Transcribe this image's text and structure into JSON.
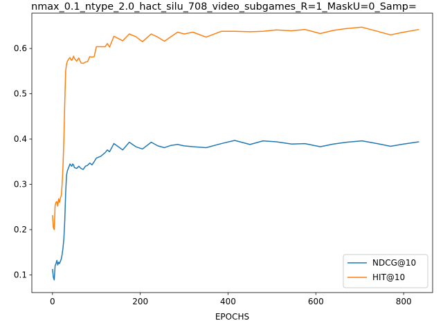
{
  "chart_data": {
    "type": "line",
    "title": "nmax_0.1_ntype_2.0_hact_silu_708_video_subgames_R=1_MaskU=0_Samp=",
    "xlabel": "EPOCHS",
    "ylabel": "",
    "xlim": [
      -47,
      866
    ],
    "ylim": [
      0.061,
      0.678
    ],
    "xticks": [
      0,
      200,
      400,
      600,
      800
    ],
    "yticks": [
      0.1,
      0.2,
      0.3,
      0.4,
      0.5,
      0.6
    ],
    "grid": false,
    "legend_position": "lower-right",
    "series": [
      {
        "name": "NDCG@10",
        "color": "#1f77b4",
        "x": [
          0,
          2,
          4,
          6,
          8,
          10,
          12,
          14,
          16,
          18,
          20,
          22,
          24,
          26,
          28,
          30,
          32,
          34,
          36,
          38,
          40,
          42,
          44,
          46,
          48,
          50,
          55,
          60,
          65,
          70,
          75,
          80,
          85,
          90,
          95,
          100,
          110,
          120,
          125,
          130,
          140,
          150,
          160,
          175,
          190,
          205,
          225,
          240,
          255,
          270,
          285,
          300,
          320,
          350,
          385,
          415,
          450,
          480,
          510,
          545,
          575,
          610,
          640,
          670,
          705,
          740,
          770,
          800,
          835
        ],
        "y": [
          0.113,
          0.095,
          0.089,
          0.12,
          0.125,
          0.132,
          0.122,
          0.128,
          0.125,
          0.13,
          0.135,
          0.145,
          0.16,
          0.18,
          0.22,
          0.28,
          0.32,
          0.33,
          0.335,
          0.34,
          0.345,
          0.342,
          0.34,
          0.345,
          0.343,
          0.337,
          0.335,
          0.34,
          0.335,
          0.333,
          0.34,
          0.342,
          0.347,
          0.343,
          0.35,
          0.358,
          0.362,
          0.37,
          0.376,
          0.372,
          0.39,
          0.383,
          0.376,
          0.393,
          0.383,
          0.378,
          0.393,
          0.385,
          0.381,
          0.386,
          0.388,
          0.385,
          0.383,
          0.381,
          0.39,
          0.397,
          0.388,
          0.396,
          0.394,
          0.389,
          0.39,
          0.383,
          0.389,
          0.393,
          0.396,
          0.39,
          0.384,
          0.389,
          0.394
        ]
      },
      {
        "name": "HIT@10",
        "color": "#ff7f0e",
        "x": [
          0,
          2,
          4,
          6,
          8,
          10,
          12,
          14,
          16,
          18,
          20,
          22,
          24,
          26,
          28,
          30,
          32,
          34,
          36,
          38,
          40,
          42,
          44,
          46,
          48,
          50,
          55,
          60,
          65,
          70,
          75,
          80,
          85,
          90,
          95,
          100,
          110,
          120,
          125,
          130,
          140,
          150,
          160,
          175,
          190,
          205,
          225,
          240,
          255,
          270,
          285,
          300,
          320,
          350,
          385,
          415,
          450,
          480,
          510,
          545,
          575,
          610,
          640,
          670,
          705,
          740,
          770,
          800,
          835
        ],
        "y": [
          0.232,
          0.205,
          0.2,
          0.253,
          0.26,
          0.262,
          0.252,
          0.268,
          0.26,
          0.27,
          0.275,
          0.3,
          0.34,
          0.4,
          0.48,
          0.55,
          0.565,
          0.572,
          0.575,
          0.578,
          0.58,
          0.575,
          0.574,
          0.578,
          0.583,
          0.578,
          0.572,
          0.579,
          0.568,
          0.567,
          0.57,
          0.571,
          0.582,
          0.581,
          0.582,
          0.604,
          0.604,
          0.604,
          0.611,
          0.603,
          0.627,
          0.622,
          0.617,
          0.632,
          0.626,
          0.615,
          0.632,
          0.625,
          0.616,
          0.626,
          0.636,
          0.632,
          0.636,
          0.625,
          0.638,
          0.638,
          0.637,
          0.638,
          0.641,
          0.639,
          0.642,
          0.633,
          0.64,
          0.644,
          0.647,
          0.638,
          0.63,
          0.636,
          0.642
        ]
      }
    ]
  }
}
